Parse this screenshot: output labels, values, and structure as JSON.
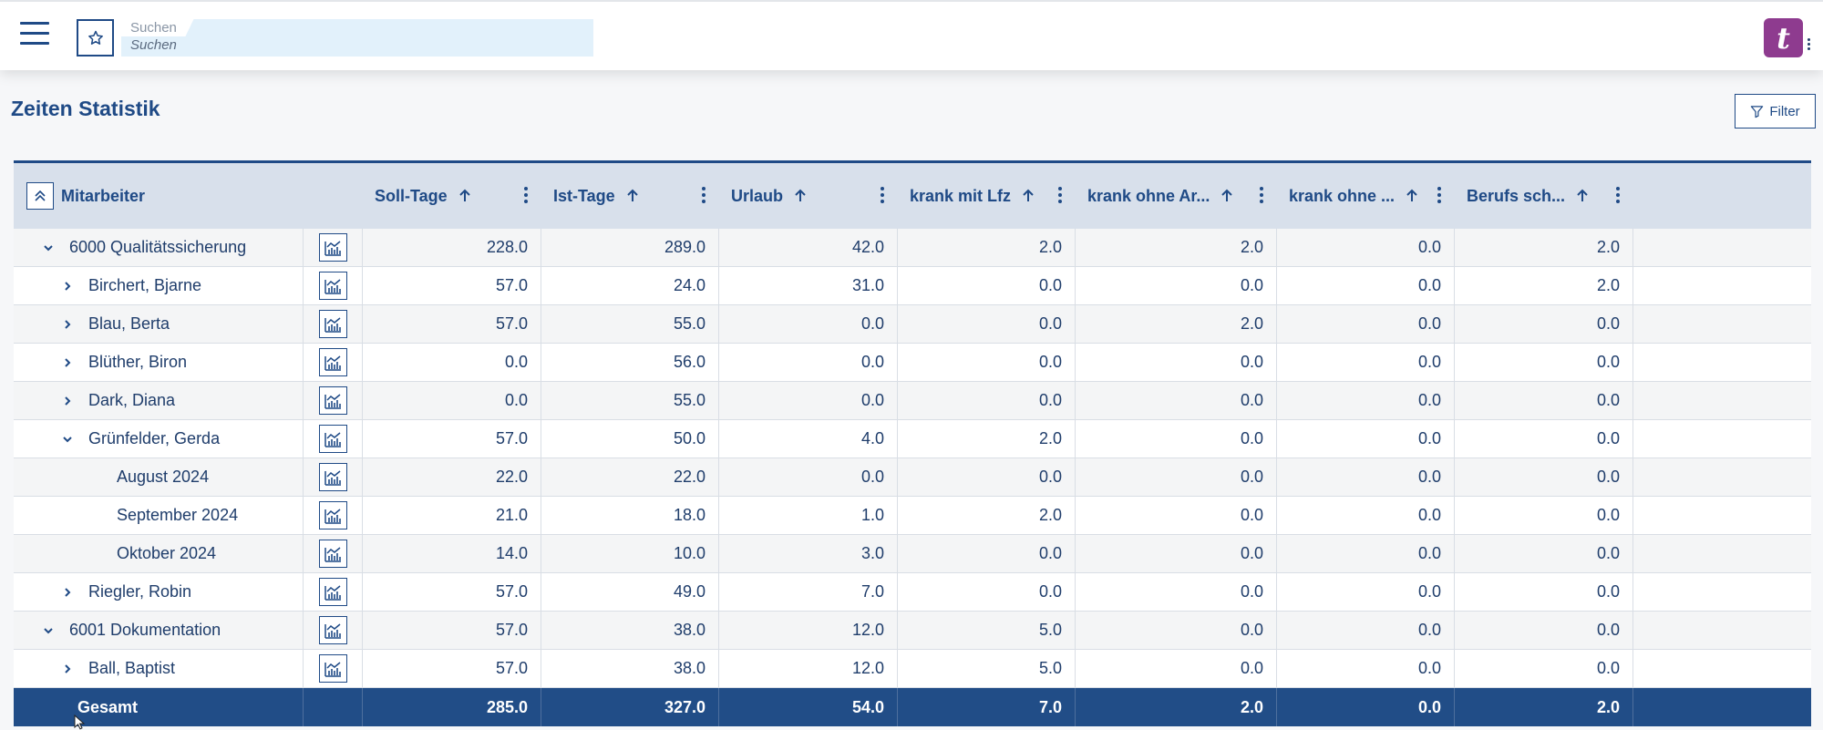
{
  "search": {
    "label": "Suchen",
    "placeholder": "Suchen"
  },
  "logo": {
    "letter": "t"
  },
  "page": {
    "title": "Zeiten Statistik",
    "filter_label": "Filter"
  },
  "columns": {
    "name": "Mitarbeiter",
    "values": [
      "Soll-Tage",
      "Ist-Tage",
      "Urlaub",
      "krank mit Lfz",
      "krank ohne Ar...",
      "krank ohne ...",
      "Berufs sch..."
    ]
  },
  "rows": [
    {
      "level": 0,
      "toggle": "expanded",
      "name": "6000 Qualitätssicherung",
      "values": [
        "228.0",
        "289.0",
        "42.0",
        "2.0",
        "2.0",
        "0.0",
        "2.0"
      ]
    },
    {
      "level": 1,
      "toggle": "collapsed",
      "name": "Birchert, Bjarne",
      "values": [
        "57.0",
        "24.0",
        "31.0",
        "0.0",
        "0.0",
        "0.0",
        "2.0"
      ]
    },
    {
      "level": 1,
      "toggle": "collapsed",
      "name": "Blau, Berta",
      "values": [
        "57.0",
        "55.0",
        "0.0",
        "0.0",
        "2.0",
        "0.0",
        "0.0"
      ]
    },
    {
      "level": 1,
      "toggle": "collapsed",
      "name": "Blüther, Biron",
      "values": [
        "0.0",
        "56.0",
        "0.0",
        "0.0",
        "0.0",
        "0.0",
        "0.0"
      ]
    },
    {
      "level": 1,
      "toggle": "collapsed",
      "name": "Dark, Diana",
      "values": [
        "0.0",
        "55.0",
        "0.0",
        "0.0",
        "0.0",
        "0.0",
        "0.0"
      ]
    },
    {
      "level": 1,
      "toggle": "expanded",
      "name": "Grünfelder, Gerda",
      "values": [
        "57.0",
        "50.0",
        "4.0",
        "2.0",
        "0.0",
        "0.0",
        "0.0"
      ]
    },
    {
      "level": 2,
      "toggle": "none",
      "name": "August 2024",
      "values": [
        "22.0",
        "22.0",
        "0.0",
        "0.0",
        "0.0",
        "0.0",
        "0.0"
      ]
    },
    {
      "level": 2,
      "toggle": "none",
      "name": "September 2024",
      "values": [
        "21.0",
        "18.0",
        "1.0",
        "2.0",
        "0.0",
        "0.0",
        "0.0"
      ]
    },
    {
      "level": 2,
      "toggle": "none",
      "name": "Oktober 2024",
      "values": [
        "14.0",
        "10.0",
        "3.0",
        "0.0",
        "0.0",
        "0.0",
        "0.0"
      ]
    },
    {
      "level": 1,
      "toggle": "collapsed",
      "name": "Riegler, Robin",
      "values": [
        "57.0",
        "49.0",
        "7.0",
        "0.0",
        "0.0",
        "0.0",
        "0.0"
      ]
    },
    {
      "level": 0,
      "toggle": "expanded",
      "name": "6001 Dokumentation",
      "values": [
        "57.0",
        "38.0",
        "12.0",
        "5.0",
        "0.0",
        "0.0",
        "0.0"
      ]
    },
    {
      "level": 1,
      "toggle": "collapsed",
      "name": "Ball, Baptist",
      "values": [
        "57.0",
        "38.0",
        "12.0",
        "5.0",
        "0.0",
        "0.0",
        "0.0"
      ]
    }
  ],
  "total": {
    "name": "Gesamt",
    "values": [
      "285.0",
      "327.0",
      "54.0",
      "7.0",
      "2.0",
      "0.0",
      "2.0"
    ]
  },
  "colors": {
    "primary": "#1f4a86",
    "total_row": "#214d87",
    "header_bg": "#d8e0eb",
    "search_bg": "#e2f1fb",
    "logo": "#8e3b8f"
  }
}
